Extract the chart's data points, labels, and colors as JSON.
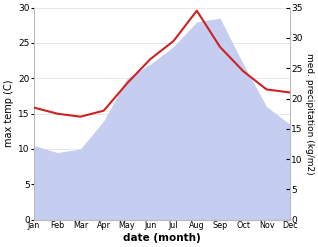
{
  "months": [
    "Jan",
    "Feb",
    "Mar",
    "Apr",
    "May",
    "Jun",
    "Jul",
    "Aug",
    "Sep",
    "Oct",
    "Nov",
    "Dec"
  ],
  "temp": [
    10.5,
    9.5,
    10.0,
    14.0,
    20.0,
    22.0,
    24.5,
    28.0,
    28.5,
    22.0,
    16.0,
    13.5
  ],
  "precip": [
    18.5,
    17.5,
    17.0,
    18.0,
    22.5,
    26.5,
    29.5,
    34.5,
    28.5,
    24.5,
    21.5,
    21.0
  ],
  "temp_color": "#c5cef0",
  "precip_color": "#cc2222",
  "temp_ylim": [
    0,
    30
  ],
  "precip_ylim": [
    0,
    35
  ],
  "xlabel": "date (month)",
  "ylabel_left": "max temp (C)",
  "ylabel_right": "med. precipitation (kg/m2)",
  "bg_color": "#ffffff",
  "plot_bg": "#ffffff",
  "temp_yticks": [
    0,
    5,
    10,
    15,
    20,
    25,
    30
  ],
  "precip_yticks": [
    0,
    5,
    10,
    15,
    20,
    25,
    30,
    35
  ]
}
